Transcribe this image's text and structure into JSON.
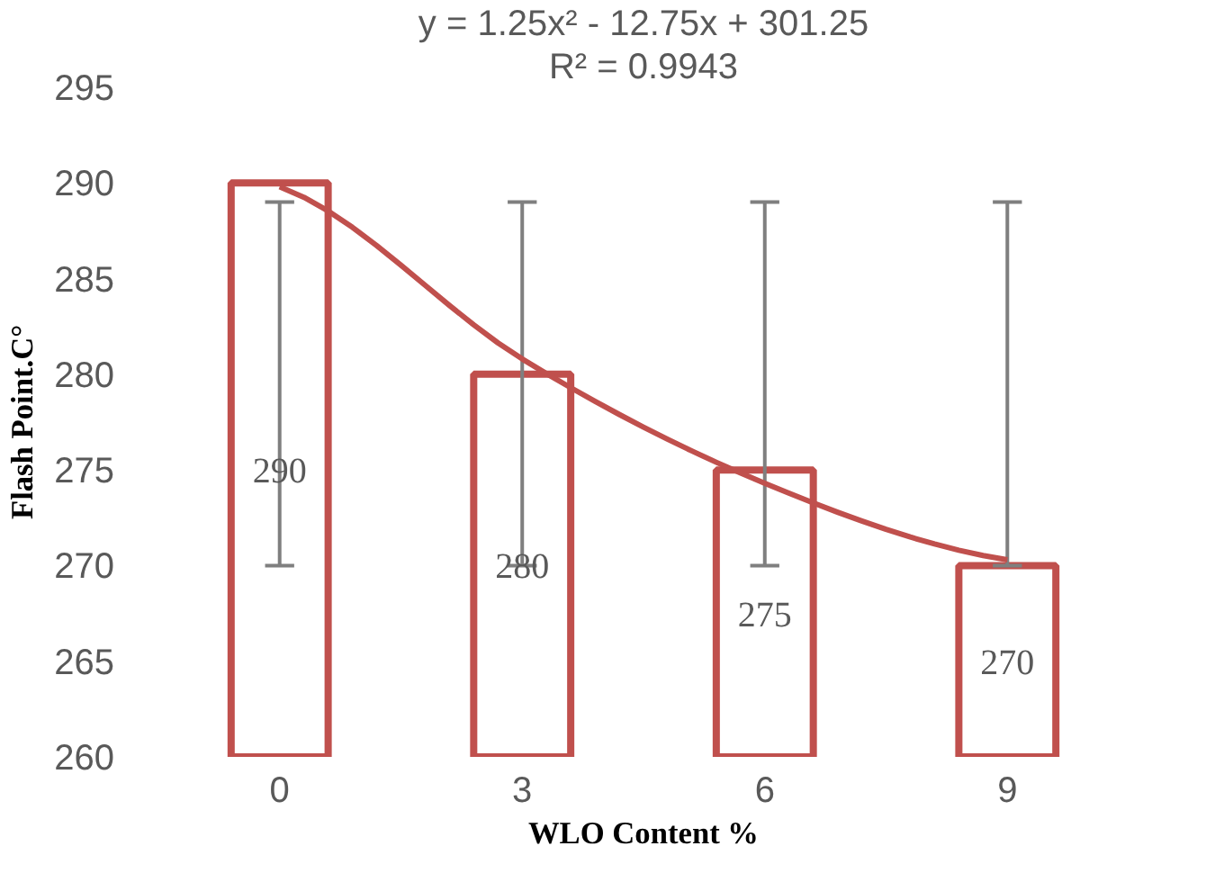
{
  "chart_data": {
    "type": "bar",
    "xlabel": "WLO Content %",
    "ylabel": "Flash Point.C°",
    "categories": [
      "0",
      "3",
      "6",
      "9"
    ],
    "series": [
      {
        "color": "#c0504d",
        "values": [
          290,
          280,
          275,
          270
        ],
        "value_labels": [
          "290",
          "280",
          "275",
          "270"
        ],
        "errors": [
          [
            270,
            289
          ],
          [
            270,
            289
          ],
          [
            270,
            289
          ],
          [
            270,
            289
          ]
        ]
      },
      {
        "type": "line",
        "color": "#c0504d",
        "values": [
          289.8,
          280.8,
          274.3,
          270.3
        ]
      }
    ],
    "ylim": [
      260,
      295
    ],
    "yticks": [
      260,
      265,
      270,
      275,
      280,
      285,
      290,
      295
    ],
    "grid": false,
    "annotations": [
      "y = 1.25x² - 12.75x + 301.25",
      "R² = 0.9943"
    ]
  }
}
